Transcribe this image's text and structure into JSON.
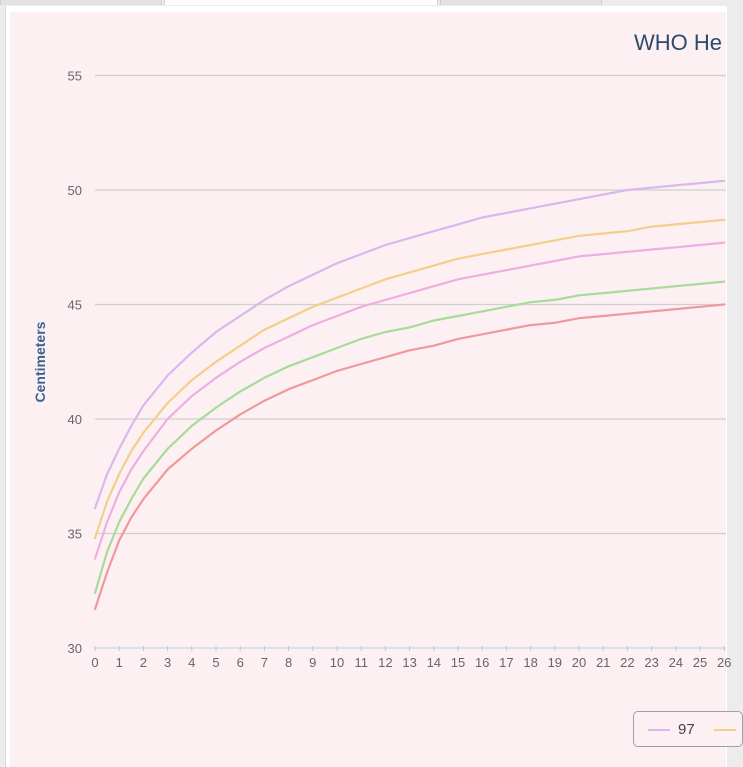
{
  "tabs": [
    {
      "label": ""
    },
    {
      "label": ""
    },
    {
      "label": ""
    }
  ],
  "chart_data": {
    "type": "line",
    "title": "WHO He",
    "ylabel": "Centimeters",
    "xlabel": "",
    "ylim": [
      30,
      55
    ],
    "xlim": [
      0,
      26
    ],
    "yticks": [
      30,
      35,
      40,
      45,
      50,
      55
    ],
    "xticks": [
      0,
      1,
      2,
      3,
      4,
      5,
      6,
      7,
      8,
      9,
      10,
      11,
      12,
      13,
      14,
      15,
      16,
      17,
      18,
      19,
      20,
      21,
      22,
      23,
      24,
      25,
      26
    ],
    "grid": true,
    "legend_position": "bottom-right",
    "x": [
      0,
      0.5,
      1,
      1.5,
      2,
      3,
      4,
      5,
      6,
      7,
      8,
      9,
      10,
      11,
      12,
      13,
      14,
      15,
      16,
      17,
      18,
      19,
      20,
      21,
      22,
      23,
      24,
      25,
      26
    ],
    "series": [
      {
        "name": "97",
        "color": "#d9b8ee",
        "values": [
          36.1,
          37.6,
          38.7,
          39.7,
          40.6,
          41.9,
          42.9,
          43.8,
          44.5,
          45.2,
          45.8,
          46.3,
          46.8,
          47.2,
          47.6,
          47.9,
          48.2,
          48.5,
          48.8,
          49.0,
          49.2,
          49.4,
          49.6,
          49.8,
          50.0,
          50.1,
          50.2,
          50.3,
          50.4
        ]
      },
      {
        "name": "",
        "color": "#f3cf8a",
        "values": [
          34.8,
          36.4,
          37.6,
          38.6,
          39.4,
          40.7,
          41.7,
          42.5,
          43.2,
          43.9,
          44.4,
          44.9,
          45.3,
          45.7,
          46.1,
          46.4,
          46.7,
          47.0,
          47.2,
          47.4,
          47.6,
          47.8,
          48.0,
          48.1,
          48.2,
          48.4,
          48.5,
          48.6,
          48.7
        ]
      },
      {
        "name": "",
        "color": "#efaee0",
        "values": [
          33.9,
          35.5,
          36.8,
          37.8,
          38.6,
          40.0,
          41.0,
          41.8,
          42.5,
          43.1,
          43.6,
          44.1,
          44.5,
          44.9,
          45.2,
          45.5,
          45.8,
          46.1,
          46.3,
          46.5,
          46.7,
          46.9,
          47.1,
          47.2,
          47.3,
          47.4,
          47.5,
          47.6,
          47.7
        ]
      },
      {
        "name": "",
        "color": "#a7dc98",
        "values": [
          32.4,
          34.2,
          35.5,
          36.5,
          37.4,
          38.7,
          39.7,
          40.5,
          41.2,
          41.8,
          42.3,
          42.7,
          43.1,
          43.5,
          43.8,
          44.0,
          44.3,
          44.5,
          44.7,
          44.9,
          45.1,
          45.2,
          45.4,
          45.5,
          45.6,
          45.7,
          45.8,
          45.9,
          46.0
        ]
      },
      {
        "name": "",
        "color": "#f0999b",
        "values": [
          31.7,
          33.3,
          34.7,
          35.7,
          36.5,
          37.8,
          38.7,
          39.5,
          40.2,
          40.8,
          41.3,
          41.7,
          42.1,
          42.4,
          42.7,
          43.0,
          43.2,
          43.5,
          43.7,
          43.9,
          44.1,
          44.2,
          44.4,
          44.5,
          44.6,
          44.7,
          44.8,
          44.9,
          45.0
        ]
      }
    ]
  }
}
